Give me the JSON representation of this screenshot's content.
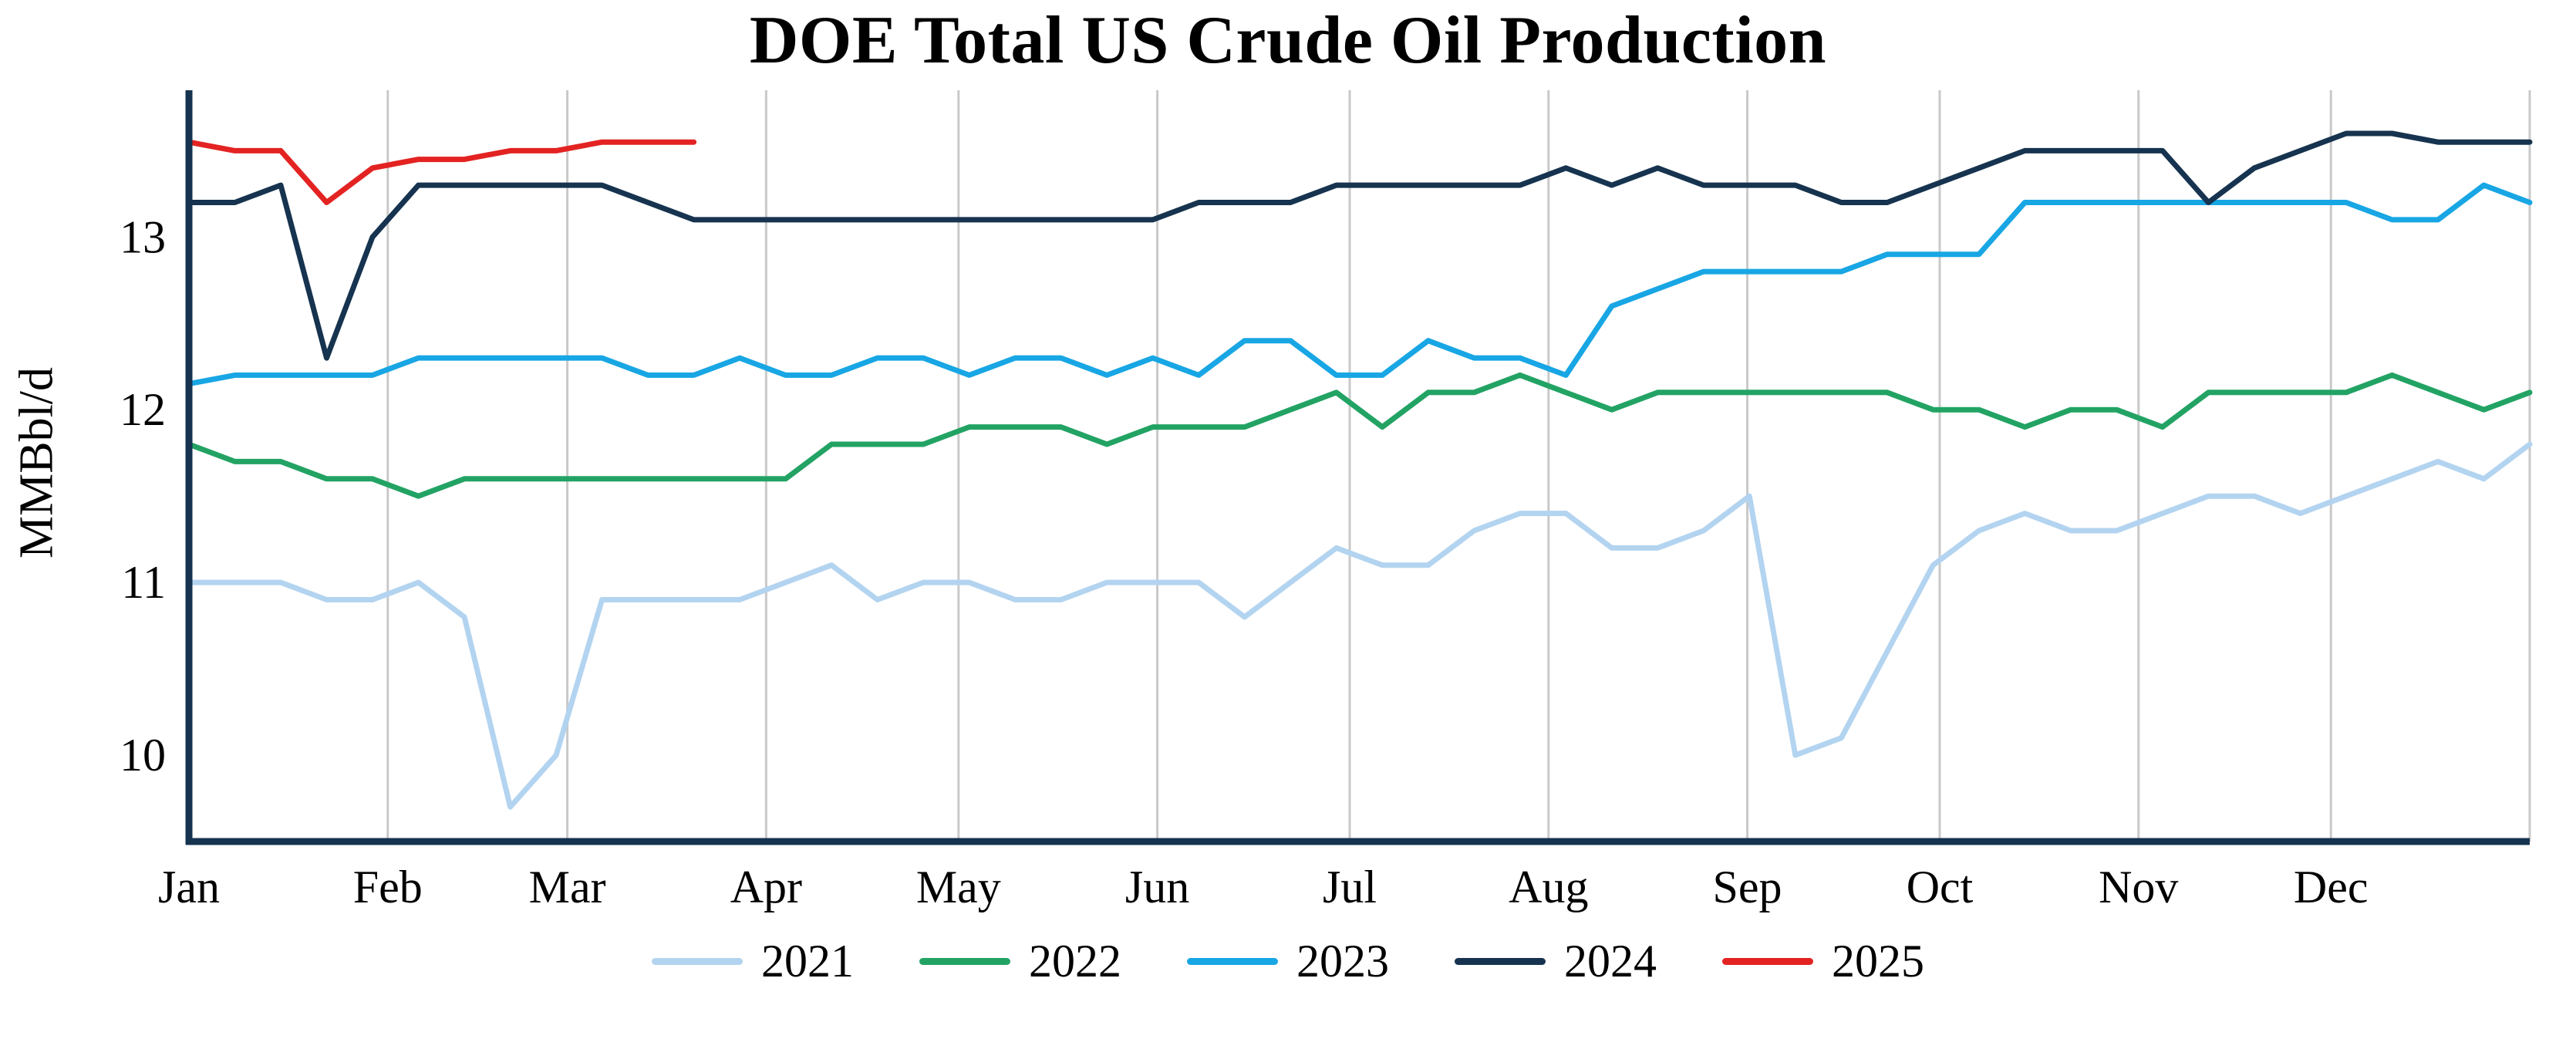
{
  "chart_data": {
    "type": "line",
    "title": "DOE Total US Crude Oil Production",
    "ylabel": "MMBbl/d",
    "x_unit": "weekly",
    "weeks": 52,
    "ylim": [
      9.5,
      13.85
    ],
    "yticks": [
      10,
      11,
      12,
      13
    ],
    "grid": "vertical-month-lines",
    "legend_position": "bottom-center",
    "colors": {
      "axis": "#16334f",
      "grid": "#c9c9c9",
      "background": "#ffffff"
    },
    "x_axis": {
      "months": [
        "Jan",
        "Feb",
        "Mar",
        "Apr",
        "May",
        "Jun",
        "Jul",
        "Aug",
        "Sep",
        "Oct",
        "Nov",
        "Dec"
      ],
      "month_start_days": [
        0,
        31,
        59,
        90,
        120,
        151,
        181,
        212,
        243,
        273,
        304,
        334
      ],
      "gridline_days": [
        31,
        59,
        90,
        120,
        151,
        181,
        212,
        243,
        273,
        304,
        334,
        365
      ],
      "days_per_year": 365
    },
    "series": [
      {
        "name": "2021",
        "color": "#b3d4f0",
        "values": [
          11.0,
          11.0,
          11.0,
          10.9,
          10.9,
          11.0,
          10.8,
          9.7,
          10.0,
          10.9,
          10.9,
          10.9,
          10.9,
          11.0,
          11.1,
          10.9,
          11.0,
          11.0,
          10.9,
          10.9,
          11.0,
          11.0,
          11.0,
          10.8,
          11.0,
          11.2,
          11.1,
          11.1,
          11.3,
          11.4,
          11.4,
          11.2,
          11.2,
          11.3,
          11.5,
          10.0,
          10.1,
          10.6,
          11.1,
          11.3,
          11.4,
          11.3,
          11.3,
          11.4,
          11.5,
          11.5,
          11.4,
          11.5,
          11.6,
          11.7,
          11.6,
          11.8
        ]
      },
      {
        "name": "2022",
        "color": "#22a364",
        "values": [
          11.8,
          11.7,
          11.7,
          11.6,
          11.6,
          11.5,
          11.6,
          11.6,
          11.6,
          11.6,
          11.6,
          11.6,
          11.6,
          11.6,
          11.8,
          11.8,
          11.8,
          11.9,
          11.9,
          11.9,
          11.8,
          11.9,
          11.9,
          11.9,
          12.0,
          12.1,
          11.9,
          12.1,
          12.1,
          12.2,
          12.1,
          12.0,
          12.1,
          12.1,
          12.1,
          12.1,
          12.1,
          12.1,
          12.0,
          12.0,
          11.9,
          12.0,
          12.0,
          11.9,
          12.1,
          12.1,
          12.1,
          12.1,
          12.2,
          12.1,
          12.0,
          12.1
        ]
      },
      {
        "name": "2023",
        "color": "#18a6e4",
        "values": [
          12.15,
          12.2,
          12.2,
          12.2,
          12.2,
          12.3,
          12.3,
          12.3,
          12.3,
          12.3,
          12.2,
          12.2,
          12.3,
          12.2,
          12.2,
          12.3,
          12.3,
          12.2,
          12.3,
          12.3,
          12.2,
          12.3,
          12.2,
          12.4,
          12.4,
          12.2,
          12.2,
          12.4,
          12.3,
          12.3,
          12.2,
          12.6,
          12.7,
          12.8,
          12.8,
          12.8,
          12.8,
          12.9,
          12.9,
          12.9,
          13.2,
          13.2,
          13.2,
          13.2,
          13.2,
          13.2,
          13.2,
          13.2,
          13.1,
          13.1,
          13.3,
          13.2
        ]
      },
      {
        "name": "2024",
        "color": "#16334f",
        "values": [
          13.2,
          13.2,
          13.3,
          12.3,
          13.0,
          13.3,
          13.3,
          13.3,
          13.3,
          13.3,
          13.2,
          13.1,
          13.1,
          13.1,
          13.1,
          13.1,
          13.1,
          13.1,
          13.1,
          13.1,
          13.1,
          13.1,
          13.2,
          13.2,
          13.2,
          13.3,
          13.3,
          13.3,
          13.3,
          13.3,
          13.4,
          13.3,
          13.4,
          13.3,
          13.3,
          13.3,
          13.2,
          13.2,
          13.3,
          13.4,
          13.5,
          13.5,
          13.5,
          13.5,
          13.2,
          13.4,
          13.5,
          13.6,
          13.6,
          13.55,
          13.55,
          13.55
        ]
      },
      {
        "name": "2025",
        "color": "#e32322",
        "values": [
          13.55,
          13.5,
          13.5,
          13.2,
          13.4,
          13.45,
          13.45,
          13.5,
          13.5,
          13.55,
          13.55,
          13.55
        ]
      }
    ]
  }
}
